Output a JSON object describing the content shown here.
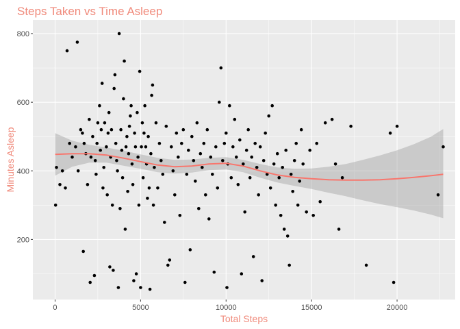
{
  "chart_data": {
    "type": "scatter",
    "title": "Steps Taken vs Time Asleep",
    "xlabel": "Total Steps",
    "ylabel": "Minutes Asleep",
    "xlim": [
      -1300,
      23400
    ],
    "ylim": [
      25,
      840
    ],
    "x_ticks": [
      0,
      5000,
      10000,
      15000,
      20000
    ],
    "x_tick_labels": [
      "0",
      "5000",
      "10000",
      "15000",
      "20000"
    ],
    "y_ticks": [
      200,
      400,
      600,
      800
    ],
    "y_tick_labels": [
      "200",
      "400",
      "600",
      "800"
    ],
    "grid": true,
    "legend": "none",
    "colors": {
      "title": "#f08a7b",
      "axis_title": "#f08a7b",
      "panel": "#ebebeb",
      "grid": "#ffffff",
      "points": "#000000",
      "smooth_line": "#f8766d",
      "confidence_band": "#999999"
    },
    "points": [
      [
        30,
        300
      ],
      [
        80,
        410
      ],
      [
        280,
        360
      ],
      [
        430,
        400
      ],
      [
        600,
        350
      ],
      [
        700,
        750
      ],
      [
        850,
        480
      ],
      [
        1000,
        440
      ],
      [
        1200,
        470
      ],
      [
        1300,
        775
      ],
      [
        1350,
        400
      ],
      [
        1500,
        520
      ],
      [
        1600,
        510
      ],
      [
        1650,
        165
      ],
      [
        1700,
        480
      ],
      [
        1800,
        450
      ],
      [
        1900,
        360
      ],
      [
        2000,
        550
      ],
      [
        2050,
        75
      ],
      [
        2100,
        440
      ],
      [
        2200,
        500
      ],
      [
        2300,
        95
      ],
      [
        2350,
        430
      ],
      [
        2400,
        390
      ],
      [
        2450,
        480
      ],
      [
        2500,
        540
      ],
      [
        2600,
        590
      ],
      [
        2650,
        460
      ],
      [
        2700,
        520
      ],
      [
        2750,
        655
      ],
      [
        2800,
        350
      ],
      [
        2850,
        410
      ],
      [
        2900,
        540
      ],
      [
        3000,
        470
      ],
      [
        3050,
        330
      ],
      [
        3100,
        510
      ],
      [
        3150,
        570
      ],
      [
        3200,
        120
      ],
      [
        3250,
        440
      ],
      [
        3300,
        520
      ],
      [
        3350,
        300
      ],
      [
        3400,
        110
      ],
      [
        3450,
        640
      ],
      [
        3500,
        680
      ],
      [
        3550,
        480
      ],
      [
        3600,
        430
      ],
      [
        3650,
        400
      ],
      [
        3700,
        60
      ],
      [
        3750,
        800
      ],
      [
        3800,
        290
      ],
      [
        3850,
        520
      ],
      [
        3900,
        460
      ],
      [
        3950,
        380
      ],
      [
        4000,
        610
      ],
      [
        4050,
        720
      ],
      [
        4100,
        230
      ],
      [
        4150,
        470
      ],
      [
        4200,
        500
      ],
      [
        4250,
        340
      ],
      [
        4300,
        450
      ],
      [
        4350,
        530
      ],
      [
        4400,
        560
      ],
      [
        4450,
        590
      ],
      [
        4500,
        420
      ],
      [
        4550,
        360
      ],
      [
        4600,
        80
      ],
      [
        4650,
        510
      ],
      [
        4700,
        470
      ],
      [
        4750,
        100
      ],
      [
        4800,
        570
      ],
      [
        4850,
        440
      ],
      [
        4900,
        300
      ],
      [
        4950,
        690
      ],
      [
        5000,
        60
      ],
      [
        5050,
        470
      ],
      [
        5100,
        540
      ],
      [
        5150,
        380
      ],
      [
        5200,
        510
      ],
      [
        5250,
        590
      ],
      [
        5300,
        470
      ],
      [
        5350,
        420
      ],
      [
        5400,
        320
      ],
      [
        5450,
        500
      ],
      [
        5500,
        350
      ],
      [
        5550,
        55
      ],
      [
        5600,
        450
      ],
      [
        5650,
        620
      ],
      [
        5700,
        650
      ],
      [
        5750,
        300
      ],
      [
        5800,
        410
      ],
      [
        5900,
        540
      ],
      [
        6000,
        350
      ],
      [
        6100,
        480
      ],
      [
        6200,
        430
      ],
      [
        6300,
        390
      ],
      [
        6400,
        250
      ],
      [
        6500,
        530
      ],
      [
        6600,
        125
      ],
      [
        6700,
        140
      ],
      [
        6800,
        470
      ],
      [
        6900,
        400
      ],
      [
        7000,
        330
      ],
      [
        7100,
        510
      ],
      [
        7200,
        440
      ],
      [
        7300,
        270
      ],
      [
        7400,
        480
      ],
      [
        7500,
        520
      ],
      [
        7600,
        75
      ],
      [
        7700,
        390
      ],
      [
        7800,
        460
      ],
      [
        7900,
        170
      ],
      [
        8000,
        500
      ],
      [
        8100,
        430
      ],
      [
        8200,
        370
      ],
      [
        8300,
        540
      ],
      [
        8400,
        290
      ],
      [
        8500,
        450
      ],
      [
        8600,
        410
      ],
      [
        8700,
        480
      ],
      [
        8800,
        330
      ],
      [
        8900,
        520
      ],
      [
        9000,
        260
      ],
      [
        9100,
        440
      ],
      [
        9200,
        390
      ],
      [
        9300,
        105
      ],
      [
        9400,
        470
      ],
      [
        9500,
        350
      ],
      [
        9600,
        600
      ],
      [
        9700,
        700
      ],
      [
        9800,
        430
      ],
      [
        9900,
        480
      ],
      [
        10000,
        510
      ],
      [
        10050,
        60
      ],
      [
        10100,
        420
      ],
      [
        10200,
        590
      ],
      [
        10300,
        380
      ],
      [
        10400,
        470
      ],
      [
        10500,
        550
      ],
      [
        10600,
        440
      ],
      [
        10700,
        360
      ],
      [
        10800,
        490
      ],
      [
        10900,
        100
      ],
      [
        11000,
        420
      ],
      [
        11100,
        280
      ],
      [
        11200,
        460
      ],
      [
        11300,
        520
      ],
      [
        11400,
        380
      ],
      [
        11500,
        440
      ],
      [
        11600,
        150
      ],
      [
        11700,
        480
      ],
      [
        11800,
        410
      ],
      [
        11900,
        330
      ],
      [
        12000,
        470
      ],
      [
        12100,
        80
      ],
      [
        12200,
        430
      ],
      [
        12300,
        510
      ],
      [
        12400,
        390
      ],
      [
        12500,
        560
      ],
      [
        12600,
        350
      ],
      [
        12700,
        590
      ],
      [
        12800,
        420
      ],
      [
        12900,
        300
      ],
      [
        13000,
        450
      ],
      [
        13100,
        380
      ],
      [
        13200,
        270
      ],
      [
        13300,
        410
      ],
      [
        13400,
        230
      ],
      [
        13500,
        460
      ],
      [
        13600,
        210
      ],
      [
        13700,
        125
      ],
      [
        13800,
        390
      ],
      [
        13900,
        340
      ],
      [
        14000,
        430
      ],
      [
        14100,
        480
      ],
      [
        14200,
        300
      ],
      [
        14300,
        370
      ],
      [
        14400,
        520
      ],
      [
        14500,
        420
      ],
      [
        14700,
        280
      ],
      [
        14900,
        460
      ],
      [
        15100,
        270
      ],
      [
        15300,
        480
      ],
      [
        15500,
        310
      ],
      [
        15800,
        540
      ],
      [
        16200,
        550
      ],
      [
        16400,
        420
      ],
      [
        16600,
        230
      ],
      [
        16800,
        380
      ],
      [
        17300,
        530
      ],
      [
        18200,
        125
      ],
      [
        19600,
        510
      ],
      [
        19800,
        75
      ],
      [
        20000,
        530
      ],
      [
        22400,
        330
      ],
      [
        22700,
        470
      ]
    ],
    "smooth_line": [
      [
        0,
        448
      ],
      [
        1000,
        450
      ],
      [
        2000,
        450
      ],
      [
        3000,
        446
      ],
      [
        4000,
        437
      ],
      [
        5000,
        427
      ],
      [
        6000,
        417
      ],
      [
        7000,
        412
      ],
      [
        8000,
        414
      ],
      [
        9000,
        420
      ],
      [
        10000,
        422
      ],
      [
        11000,
        414
      ],
      [
        12000,
        400
      ],
      [
        13000,
        388
      ],
      [
        14000,
        381
      ],
      [
        15000,
        377
      ],
      [
        16000,
        374
      ],
      [
        17000,
        373
      ],
      [
        18000,
        373
      ],
      [
        19000,
        374
      ],
      [
        20000,
        377
      ],
      [
        21000,
        381
      ],
      [
        22000,
        386
      ],
      [
        22700,
        390
      ]
    ],
    "confidence_band": {
      "x": [
        0,
        1000,
        2000,
        3000,
        4000,
        5000,
        6000,
        7000,
        8000,
        9000,
        10000,
        11000,
        12000,
        13000,
        14000,
        15000,
        16000,
        17000,
        18000,
        19000,
        20000,
        21000,
        22000,
        22700
      ],
      "upper": [
        510,
        488,
        476,
        468,
        459,
        448,
        438,
        432,
        433,
        438,
        440,
        432,
        420,
        410,
        406,
        407,
        412,
        420,
        432,
        445,
        460,
        478,
        500,
        522
      ],
      "lower": [
        386,
        412,
        424,
        424,
        415,
        406,
        396,
        392,
        395,
        402,
        404,
        396,
        380,
        366,
        356,
        347,
        336,
        326,
        314,
        303,
        294,
        284,
        272,
        262
      ]
    }
  }
}
